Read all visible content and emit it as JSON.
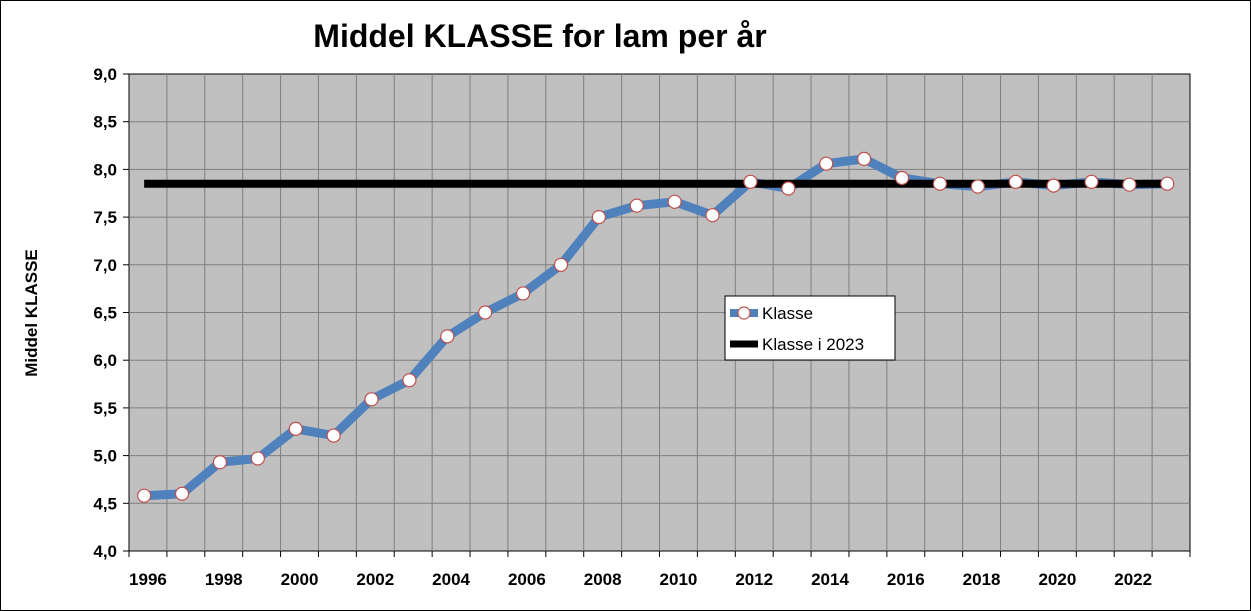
{
  "chart_data": {
    "type": "line",
    "title": "Middel KLASSE for lam per år",
    "xlabel": "",
    "ylabel": "Middel KLASSE",
    "x": [
      1996,
      1997,
      1998,
      1999,
      2000,
      2001,
      2002,
      2003,
      2004,
      2005,
      2006,
      2007,
      2008,
      2009,
      2010,
      2011,
      2012,
      2013,
      2014,
      2015,
      2016,
      2017,
      2018,
      2019,
      2020,
      2021,
      2022,
      2023
    ],
    "xticks": [
      "1996",
      "1998",
      "2000",
      "2002",
      "2004",
      "2006",
      "2008",
      "2010",
      "2012",
      "2014",
      "2016",
      "2018",
      "2020",
      "2022"
    ],
    "yticks": [
      "4,0",
      "4,5",
      "5,0",
      "5,5",
      "6,0",
      "6,5",
      "7,0",
      "7,5",
      "8,0",
      "8,5",
      "9,0"
    ],
    "ylim": [
      4.0,
      9.0
    ],
    "xlim": [
      1995.6,
      2023.6
    ],
    "grid": true,
    "legend_position": "center-right",
    "series": [
      {
        "name": "Klasse",
        "color": "#4F81BD",
        "marker": "circle",
        "values": [
          4.58,
          4.6,
          4.93,
          4.97,
          5.28,
          5.21,
          5.59,
          5.79,
          6.25,
          6.5,
          6.7,
          7.0,
          7.5,
          7.62,
          7.66,
          7.52,
          7.87,
          7.8,
          8.06,
          8.11,
          7.91,
          7.85,
          7.82,
          7.87,
          7.83,
          7.87,
          7.84,
          7.85
        ]
      },
      {
        "name": "Klasse i 2023",
        "color": "#000000",
        "constant": 7.85
      }
    ],
    "colors": {
      "plot_background": "#C0C0C0",
      "gridline": "#7F7F7F",
      "marker_fill": "#FFFFFF",
      "marker_stroke": "#C0504D"
    }
  }
}
